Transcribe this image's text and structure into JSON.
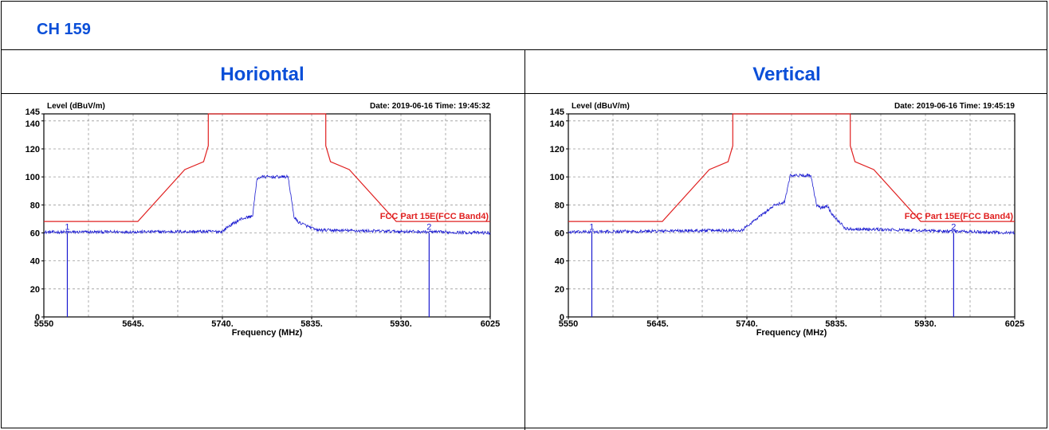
{
  "page": {
    "channel_title": "CH 159",
    "columns": [
      {
        "heading": "Horiontal"
      },
      {
        "heading": "Vertical"
      }
    ]
  },
  "chart_data": [
    {
      "type": "line",
      "panel": "Horiontal",
      "ylabel": "Level (dBuV/m)",
      "xlabel": "Frequency (MHz)",
      "date_text": "Date: 2019-06-16  Time: 19:45:32",
      "xlim": [
        5550,
        6025
      ],
      "ylim": [
        0,
        145
      ],
      "x_ticks": [
        5550,
        5645,
        5740,
        5835,
        5930,
        6025
      ],
      "x_tick_labels": [
        "5550",
        "5645.",
        "5740.",
        "5835.",
        "5930.",
        "6025"
      ],
      "y_ticks": [
        0,
        20,
        40,
        60,
        80,
        100,
        120,
        140,
        145
      ],
      "y_tick_labels": [
        "0",
        "20",
        "40",
        "60",
        "80",
        "100",
        "120",
        "140",
        "145"
      ],
      "grid": true,
      "limit_label": "FCC Part 15E(FCC Band4)",
      "limit_line": {
        "x": [
          5550,
          5650,
          5700,
          5720,
          5725,
          5725,
          5850,
          5850,
          5855,
          5875,
          5925,
          6025
        ],
        "y": [
          68.2,
          68.2,
          105.2,
          110.8,
          122.2,
          145,
          145,
          122.2,
          110.8,
          105.2,
          68.2,
          68.2
        ]
      },
      "trace_profile": {
        "x": [
          5550,
          5740,
          5745,
          5760,
          5772,
          5777,
          5782,
          5810,
          5816,
          5820,
          5840,
          6025
        ],
        "y": [
          60.5,
          61,
          64,
          70,
          72,
          99,
          100,
          100,
          72,
          68,
          62,
          60
        ],
        "noise": 1.1
      },
      "markers": [
        {
          "label": "1",
          "x": 5575,
          "y": 60
        },
        {
          "label": "2",
          "x": 5960,
          "y": 60
        }
      ],
      "colors": {
        "limit": "#e02020",
        "trace": "#1a1ad0",
        "grid": "#9a9a9a",
        "marker": "#1a1ad0",
        "limit_text": "#e02020"
      }
    },
    {
      "type": "line",
      "panel": "Vertical",
      "ylabel": "Level (dBuV/m)",
      "xlabel": "Frequency (MHz)",
      "date_text": "Date: 2019-06-16  Time: 19:45:19",
      "xlim": [
        5550,
        6025
      ],
      "ylim": [
        0,
        145
      ],
      "x_ticks": [
        5550,
        5645,
        5740,
        5835,
        5930,
        6025
      ],
      "x_tick_labels": [
        "5550",
        "5645.",
        "5740.",
        "5835.",
        "5930.",
        "6025"
      ],
      "y_ticks": [
        0,
        20,
        40,
        60,
        80,
        100,
        120,
        140,
        145
      ],
      "y_tick_labels": [
        "0",
        "20",
        "40",
        "60",
        "80",
        "100",
        "120",
        "140",
        "145"
      ],
      "grid": true,
      "limit_label": "FCC Part 15E(FCC Band4)",
      "limit_line": {
        "x": [
          5550,
          5650,
          5700,
          5720,
          5725,
          5725,
          5850,
          5850,
          5855,
          5875,
          5925,
          6025
        ],
        "y": [
          68.2,
          68.2,
          105.2,
          110.8,
          122.2,
          145,
          145,
          122.2,
          110.8,
          105.2,
          68.2,
          68.2
        ]
      },
      "trace_profile": {
        "x": [
          5550,
          5735,
          5750,
          5770,
          5780,
          5786,
          5808,
          5814,
          5818,
          5826,
          5830,
          5845,
          6025
        ],
        "y": [
          60.5,
          62,
          70,
          80,
          82,
          101,
          101,
          80,
          78,
          79,
          74,
          63,
          60
        ],
        "noise": 1.1
      },
      "markers": [
        {
          "label": "1",
          "x": 5575,
          "y": 60
        },
        {
          "label": "2",
          "x": 5960,
          "y": 60
        }
      ],
      "colors": {
        "limit": "#e02020",
        "trace": "#1a1ad0",
        "grid": "#9a9a9a",
        "marker": "#1a1ad0",
        "limit_text": "#e02020"
      }
    }
  ]
}
